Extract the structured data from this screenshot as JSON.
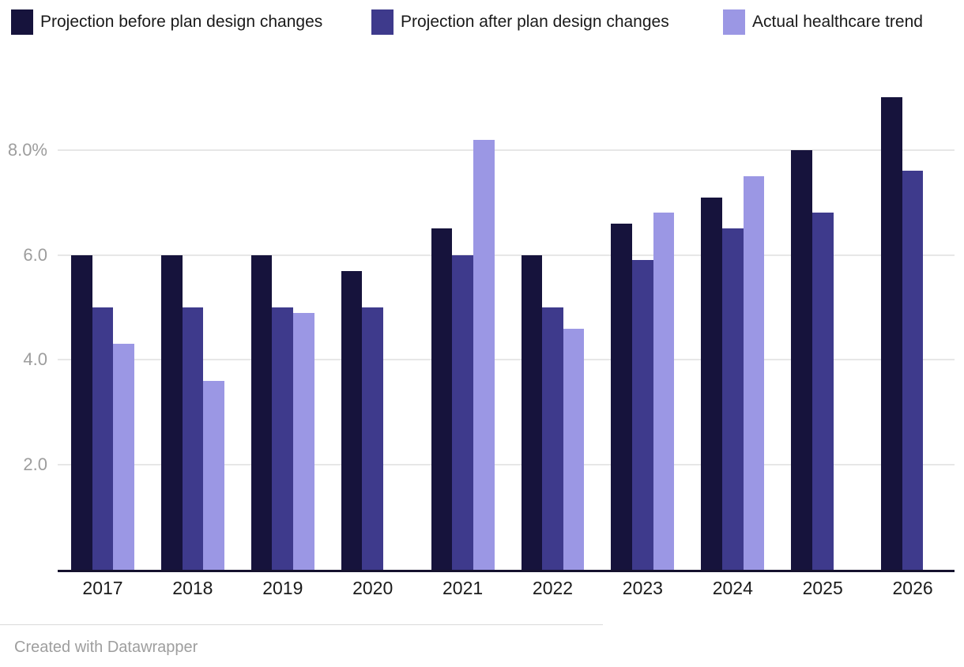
{
  "legend": {
    "items": [
      {
        "label": "Projection before plan design changes",
        "color": "#16133c"
      },
      {
        "label": "Projection after plan design changes",
        "color": "#3e3a8c"
      },
      {
        "label": "Actual healthcare trend",
        "color": "#9b97e4"
      }
    ]
  },
  "chart_data": {
    "type": "bar",
    "title": "",
    "xlabel": "",
    "ylabel": "",
    "categories": [
      "2017",
      "2018",
      "2019",
      "2020",
      "2021",
      "2022",
      "2023",
      "2024",
      "2025",
      "2026"
    ],
    "series": [
      {
        "name": "Projection before plan design changes",
        "color": "#16133c",
        "values": [
          6.0,
          6.0,
          6.0,
          5.7,
          6.5,
          6.0,
          6.6,
          7.1,
          8.0,
          9.0
        ]
      },
      {
        "name": "Projection after plan design changes",
        "color": "#3e3a8c",
        "values": [
          5.0,
          5.0,
          5.0,
          5.0,
          6.0,
          5.0,
          5.9,
          6.5,
          6.8,
          7.6
        ]
      },
      {
        "name": "Actual healthcare trend",
        "color": "#9b97e4",
        "values": [
          4.3,
          3.6,
          4.9,
          null,
          8.2,
          4.6,
          6.8,
          7.5,
          null,
          null
        ]
      }
    ],
    "y_ticks": [
      {
        "value": 2,
        "label": "2.0"
      },
      {
        "value": 4,
        "label": "4.0"
      },
      {
        "value": 6,
        "label": "6.0"
      },
      {
        "value": 8,
        "label": "8.0%"
      }
    ],
    "ylim": [
      0,
      9.35
    ],
    "unit": "percent",
    "grid": "horizontal",
    "legend_position": "top"
  },
  "footer": {
    "credit": "Created with Datawrapper"
  },
  "colors": {
    "background": "#ffffff",
    "gridline": "#e7e7e7",
    "axis_line": "#15122e",
    "y_tick_text": "#9d9d9d",
    "x_tick_text": "#1b1b1b",
    "legend_text": "#1a1a1a",
    "credit_text": "#9e9e9e"
  }
}
